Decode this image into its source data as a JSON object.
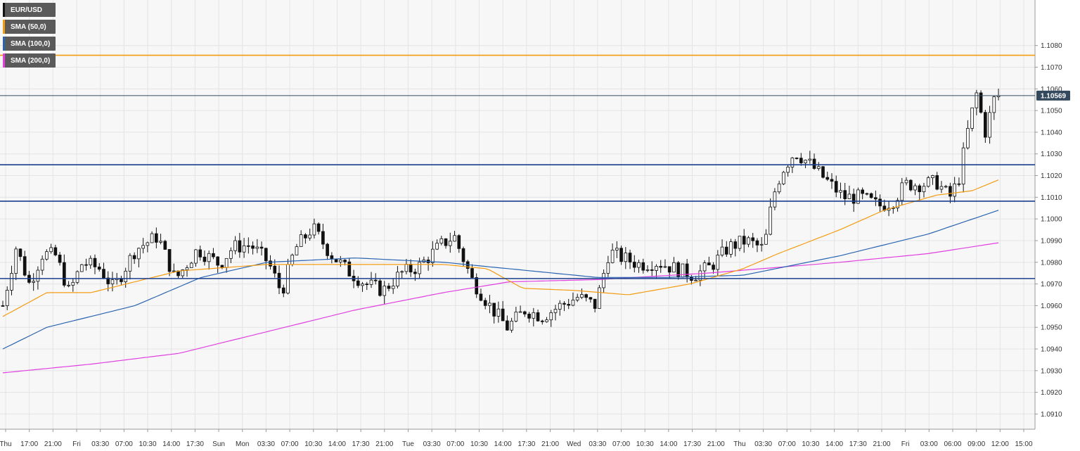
{
  "chart_data": {
    "type": "candlestick",
    "symbol": "EUR/USD",
    "legend": [
      {
        "label": "EUR/USD",
        "color": "#111111"
      },
      {
        "label": "SMA (50,0)",
        "color": "#f39c12"
      },
      {
        "label": "SMA (100,0)",
        "color": "#2a64b0"
      },
      {
        "label": "SMA (200,0)",
        "color": "#e040e0"
      }
    ],
    "ylim": [
      1.0903,
      1.1101
    ],
    "y_ticks": [
      "1.0910",
      "1.0920",
      "1.0930",
      "1.0940",
      "1.0950",
      "1.0960",
      "1.0970",
      "1.0980",
      "1.0990",
      "1.1000",
      "1.1010",
      "1.1020",
      "1.1030",
      "1.1040",
      "1.1050",
      "1.1060",
      "1.1070",
      "1.1080"
    ],
    "x_ticks": [
      "Thu",
      "17:00",
      "21:00",
      "Fri",
      "03:30",
      "07:00",
      "10:30",
      "14:00",
      "17:30",
      "Sun",
      "Mon",
      "03:30",
      "07:00",
      "10:30",
      "14:00",
      "17:30",
      "21:00",
      "Tue",
      "03:30",
      "07:00",
      "10:30",
      "14:00",
      "17:30",
      "21:00",
      "Wed",
      "03:30",
      "07:00",
      "10:30",
      "14:00",
      "17:30",
      "21:00",
      "Thu",
      "03:30",
      "07:00",
      "10:30",
      "14:00",
      "17:30",
      "21:00",
      "Fri",
      "03:00",
      "06:00",
      "09:00",
      "12:00",
      "15:00"
    ],
    "last_price": "1.10569",
    "current_price_value": 1.10569,
    "horizontal_levels": [
      {
        "value": 1.10755,
        "color": "#f39c12"
      },
      {
        "value": 1.10569,
        "color": "#34495e"
      },
      {
        "value": 1.1025,
        "color": "#1a3e8c"
      },
      {
        "value": 1.10082,
        "color": "#1a3e8c"
      },
      {
        "value": 1.09725,
        "color": "#1a3e8c"
      }
    ],
    "close_path": [
      [
        0,
        1.096
      ],
      [
        3,
        1.0987
      ],
      [
        6,
        1.097
      ],
      [
        9,
        1.0984
      ],
      [
        12,
        1.0983
      ],
      [
        15,
        1.0966
      ],
      [
        18,
        1.098
      ],
      [
        22,
        1.0977
      ],
      [
        25,
        1.0968
      ],
      [
        30,
        1.0986
      ],
      [
        35,
        1.0992
      ],
      [
        39,
        1.0972
      ],
      [
        44,
        1.0986
      ],
      [
        49,
        1.0979
      ],
      [
        52,
        1.0987
      ],
      [
        56,
        1.0988
      ],
      [
        60,
        1.098
      ],
      [
        63,
        1.0966
      ],
      [
        66,
        1.0986
      ],
      [
        70,
        1.0996
      ],
      [
        74,
        1.0984
      ],
      [
        78,
        1.0976
      ],
      [
        82,
        1.097
      ],
      [
        86,
        1.0967
      ],
      [
        90,
        1.0975
      ],
      [
        94,
        1.0978
      ],
      [
        99,
        1.0988
      ],
      [
        102,
        1.0992
      ],
      [
        106,
        1.0972
      ],
      [
        110,
        1.096
      ],
      [
        114,
        1.095
      ],
      [
        118,
        1.0958
      ],
      [
        122,
        1.0955
      ],
      [
        126,
        1.096
      ],
      [
        130,
        1.0964
      ],
      [
        134,
        1.096
      ],
      [
        137,
        1.0985
      ],
      [
        140,
        1.0982
      ],
      [
        144,
        1.0979
      ],
      [
        148,
        1.098
      ],
      [
        152,
        1.0977
      ],
      [
        156,
        1.0974
      ],
      [
        160,
        1.0978
      ],
      [
        164,
        1.0987
      ],
      [
        168,
        1.099
      ],
      [
        172,
        1.0986
      ],
      [
        174,
        1.101
      ],
      [
        176,
        1.1022
      ],
      [
        179,
        1.1031
      ],
      [
        182,
        1.1026
      ],
      [
        186,
        1.1018
      ],
      [
        190,
        1.101
      ],
      [
        194,
        1.101
      ],
      [
        198,
        1.1006
      ],
      [
        201,
        1.1008
      ],
      [
        204,
        1.1016
      ],
      [
        208,
        1.1016
      ],
      [
        211,
        1.1017
      ],
      [
        214,
        1.101
      ],
      [
        216,
        1.1018
      ],
      [
        218,
        1.104
      ],
      [
        220,
        1.1058
      ],
      [
        222,
        1.104
      ],
      [
        224,
        1.1055
      ],
      [
        225,
        1.10569
      ]
    ],
    "sma50": [
      [
        0,
        1.0955
      ],
      [
        10,
        1.0966
      ],
      [
        20,
        1.0966
      ],
      [
        40,
        1.0976
      ],
      [
        60,
        1.0979
      ],
      [
        80,
        1.0979
      ],
      [
        100,
        1.0979
      ],
      [
        110,
        1.0977
      ],
      [
        118,
        1.0968
      ],
      [
        130,
        1.0967
      ],
      [
        142,
        1.0965
      ],
      [
        156,
        1.097
      ],
      [
        168,
        1.0977
      ],
      [
        176,
        1.0984
      ],
      [
        190,
        1.0995
      ],
      [
        200,
        1.1004
      ],
      [
        212,
        1.1011
      ],
      [
        220,
        1.1013
      ],
      [
        226,
        1.1018
      ]
    ],
    "sma100": [
      [
        0,
        1.094
      ],
      [
        10,
        1.095
      ],
      [
        30,
        1.096
      ],
      [
        45,
        1.0973
      ],
      [
        60,
        1.098
      ],
      [
        80,
        1.0982
      ],
      [
        100,
        1.098
      ],
      [
        115,
        1.0977
      ],
      [
        135,
        1.0973
      ],
      [
        150,
        1.0973
      ],
      [
        168,
        1.0974
      ],
      [
        190,
        1.0983
      ],
      [
        210,
        1.0993
      ],
      [
        226,
        1.1004
      ]
    ],
    "sma200": [
      [
        0,
        1.0929
      ],
      [
        20,
        1.0933
      ],
      [
        40,
        1.0938
      ],
      [
        60,
        1.0948
      ],
      [
        80,
        1.0958
      ],
      [
        100,
        1.0966
      ],
      [
        115,
        1.0971
      ],
      [
        135,
        1.0972
      ],
      [
        160,
        1.0975
      ],
      [
        190,
        1.098
      ],
      [
        210,
        1.0984
      ],
      [
        226,
        1.0989
      ]
    ]
  }
}
